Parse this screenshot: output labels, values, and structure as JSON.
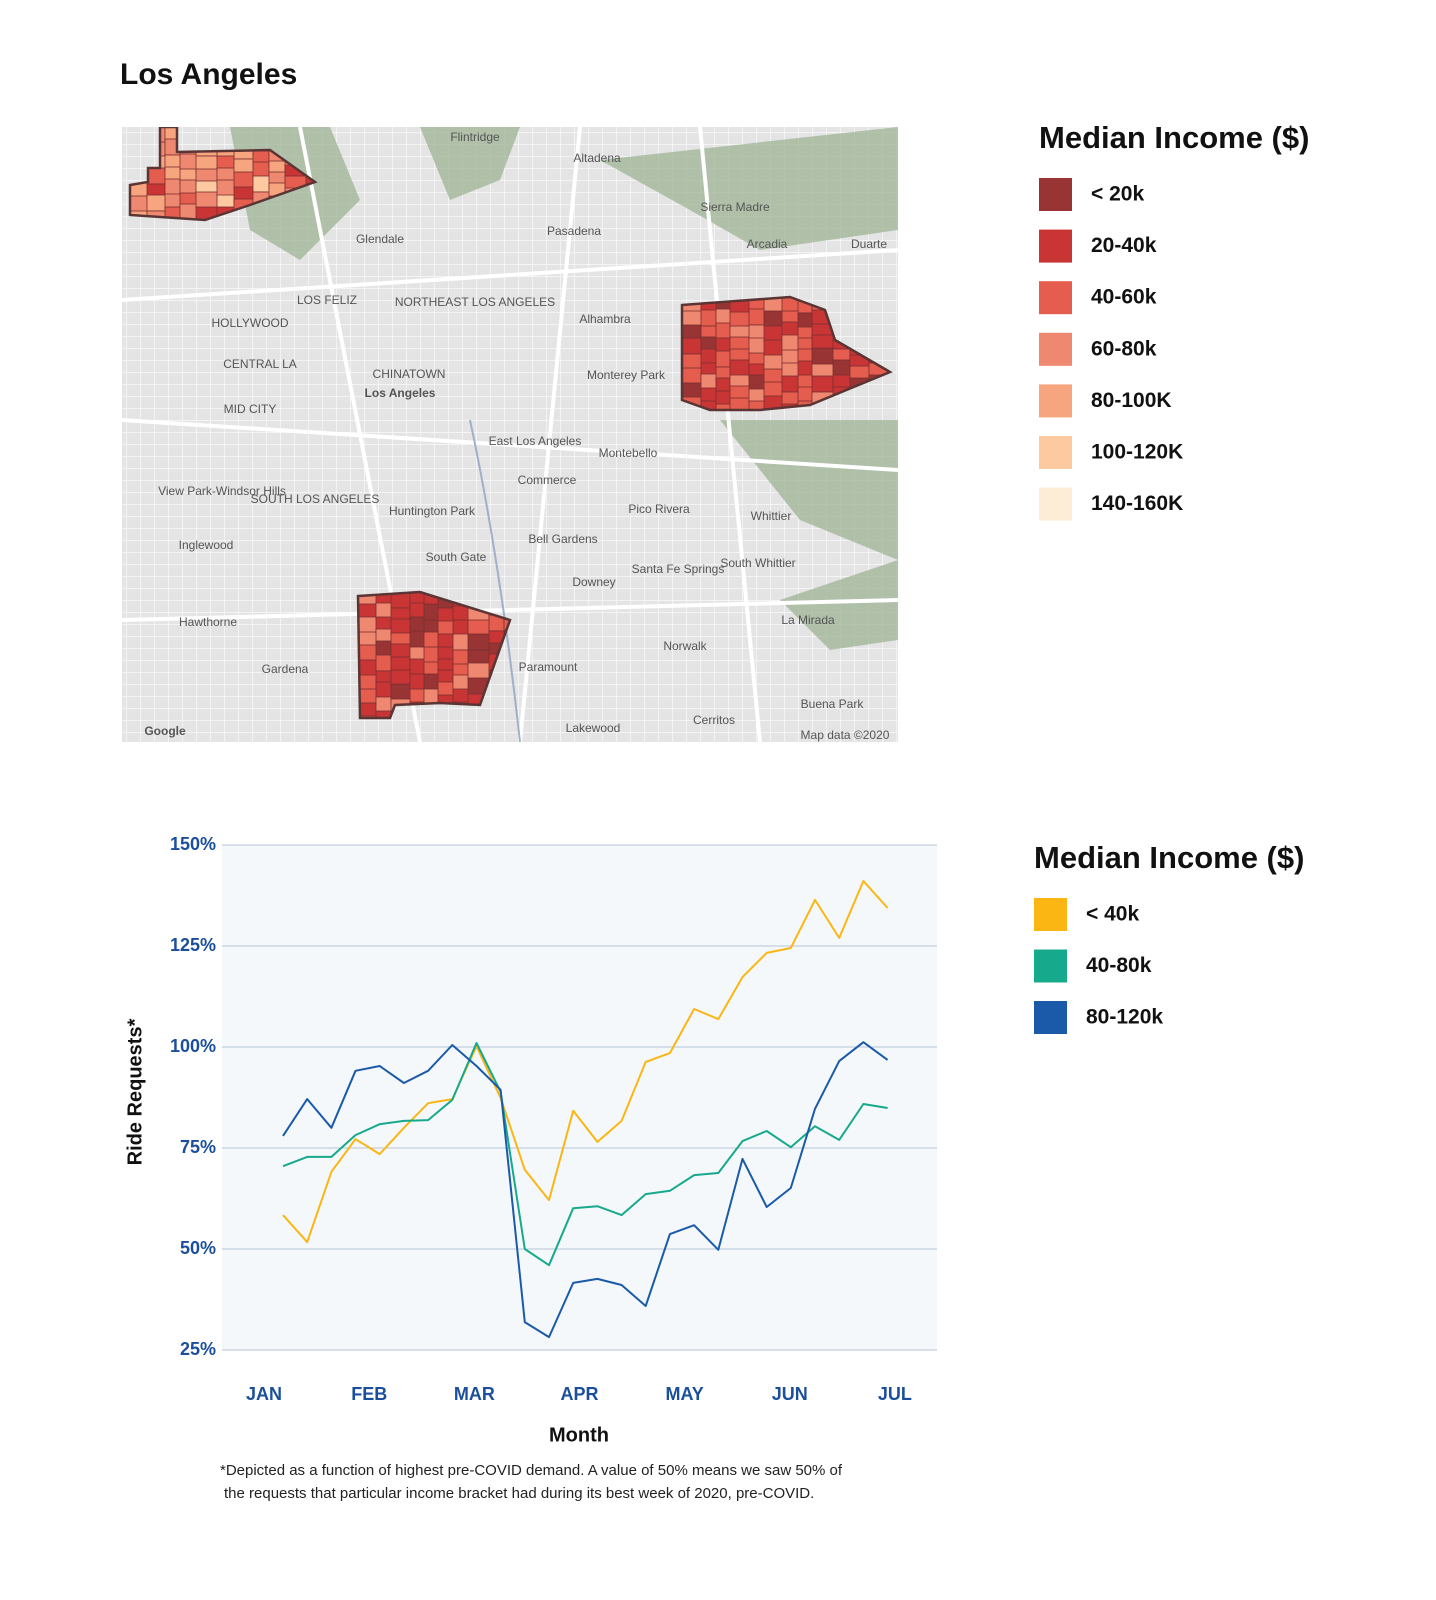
{
  "chart_data": [
    {
      "type": "map",
      "title": "Los Angeles",
      "legend": {
        "title": "Median Income ($)",
        "labels": [
          "< 20k",
          "20-40k",
          "40-60k",
          "60-80k",
          "80-100K",
          "100-120K",
          "140-160K"
        ],
        "colors": [
          "#983434",
          "#c93535",
          "#e45d4e",
          "#ef8870",
          "#f6a57f",
          "#fcc9a0",
          "#fdecd6"
        ]
      },
      "place_labels": [
        "Flintridge",
        "Altadena",
        "Sierra Madre",
        "Glendale",
        "Pasadena",
        "Arcadia",
        "Duarte",
        "HOLLYWOOD",
        "LOS FELIZ",
        "NORTHEAST LOS ANGELES",
        "Alhambra",
        "CENTRAL LA",
        "CHINATOWN",
        "Los Angeles",
        "Monterey Park",
        "MID CITY",
        "East Los Angeles",
        "Montebello",
        "Commerce",
        "View Park-Windsor Hills",
        "SOUTH LOS ANGELES",
        "Huntington Park",
        "Pico Rivera",
        "Whittier",
        "Bell Gardens",
        "Inglewood",
        "South Gate",
        "Santa Fe Springs",
        "South Whittier",
        "Downey",
        "Hawthorne",
        "La Mirada",
        "Norwalk",
        "Paramount",
        "Gardena",
        "Buena Park",
        "Cerritos",
        "Lakewood",
        "Map data ©2020",
        "Google"
      ]
    },
    {
      "type": "line",
      "y_label": "Ride Requests*",
      "x_label": "Month",
      "footnote": [
        "*Depicted as a function of highest pre-COVID demand. A value of 50% means we saw 50% of",
        "the requests that particular income bracket had during its best week of 2020, pre-COVID."
      ],
      "legend_title": "Median Income ($)",
      "xlim": [
        -0.4,
        6.4
      ],
      "xticks": [
        {
          "value": 0,
          "label": "JAN"
        },
        {
          "value": 1,
          "label": "FEB"
        },
        {
          "value": 2,
          "label": "MAR"
        },
        {
          "value": 3,
          "label": "APR"
        },
        {
          "value": 4,
          "label": "MAY"
        },
        {
          "value": 5,
          "label": "JUN"
        },
        {
          "value": 6,
          "label": "JUL"
        }
      ],
      "ylim": [
        25,
        150
      ],
      "yticks": [
        {
          "value": 25,
          "label": "25%"
        },
        {
          "value": 50,
          "label": "50%"
        },
        {
          "value": 75,
          "label": "75%"
        },
        {
          "value": 100,
          "label": "100%"
        },
        {
          "value": 125,
          "label": "125%"
        },
        {
          "value": 150,
          "label": "150%"
        }
      ],
      "grid": true,
      "x": [
        0.18,
        0.41,
        0.64,
        0.87,
        1.1,
        1.33,
        1.56,
        1.79,
        2.02,
        2.25,
        2.48,
        2.71,
        2.94,
        3.17,
        3.4,
        3.63,
        3.86,
        4.09,
        4.32,
        4.55,
        4.78,
        5.01,
        5.24,
        5.47,
        5.7,
        5.93
      ],
      "series": [
        {
          "name": "< 40k",
          "color": "#fbb614",
          "values": [
            58.4,
            51.7,
            69.1,
            77.2,
            73.5,
            80,
            86.1,
            87.1,
            100.2,
            87.4,
            69.6,
            62.1,
            84.2,
            76.5,
            81.7,
            96.3,
            98.5,
            109.4,
            106.9,
            117.3,
            123.3,
            124.5,
            136.4,
            127,
            141.1,
            134.4
          ]
        },
        {
          "name": "40-80k",
          "color": "#17a98c",
          "values": [
            70.5,
            72.8,
            72.8,
            78.2,
            80.9,
            81.7,
            81.9,
            86.9,
            101,
            88.9,
            50,
            46,
            60.1,
            60.6,
            58.4,
            63.6,
            64.4,
            68.3,
            68.8,
            76.7,
            79.2,
            75.2,
            80.4,
            77,
            85.9,
            84.9
          ]
        },
        {
          "name": "80-120k",
          "color": "#1b5aa8",
          "values": [
            78,
            87.1,
            80,
            94.1,
            95.3,
            91.1,
            94.1,
            100.5,
            95.3,
            89.4,
            31.9,
            28.2,
            41.6,
            42.6,
            41.1,
            35.9,
            53.7,
            55.9,
            49.8,
            72.3,
            60.4,
            65.1,
            84.7,
            96.5,
            101.2,
            96.8
          ]
        }
      ]
    }
  ]
}
